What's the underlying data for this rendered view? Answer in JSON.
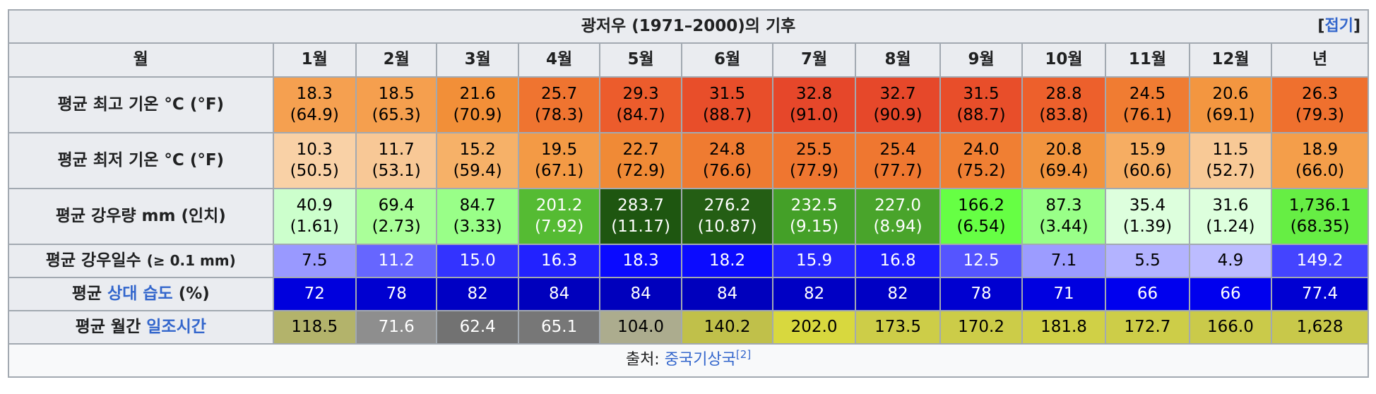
{
  "title": "광저우 (1971–2000)의 기후",
  "toggle": {
    "open": "[",
    "label": "접기",
    "close": "]"
  },
  "header": {
    "corner": "월",
    "months": [
      "1월",
      "2월",
      "3월",
      "4월",
      "5월",
      "6월",
      "7월",
      "8월",
      "9월",
      "10월",
      "11월",
      "12월"
    ],
    "year": "년"
  },
  "rows": [
    {
      "label": "평균 최고 기온 °C (°F)",
      "cells": [
        {
          "top": "18.3",
          "bottom": "(64.9)",
          "bg": "#f5a050",
          "fg": "#000000"
        },
        {
          "top": "18.5",
          "bottom": "(65.3)",
          "bg": "#f59f4e",
          "fg": "#000000"
        },
        {
          "top": "21.6",
          "bottom": "(70.9)",
          "bg": "#f28f38",
          "fg": "#000000"
        },
        {
          "top": "25.7",
          "bottom": "(78.3)",
          "bg": "#ef7430",
          "fg": "#000000"
        },
        {
          "top": "29.3",
          "bottom": "(84.7)",
          "bg": "#ec5c2c",
          "fg": "#000000"
        },
        {
          "top": "31.5",
          "bottom": "(88.7)",
          "bg": "#e84e2a",
          "fg": "#000000"
        },
        {
          "top": "32.8",
          "bottom": "(91.0)",
          "bg": "#e6472a",
          "fg": "#000000"
        },
        {
          "top": "32.7",
          "bottom": "(90.9)",
          "bg": "#e6482a",
          "fg": "#000000"
        },
        {
          "top": "31.5",
          "bottom": "(88.7)",
          "bg": "#e84e2a",
          "fg": "#000000"
        },
        {
          "top": "28.8",
          "bottom": "(83.8)",
          "bg": "#ed602c",
          "fg": "#000000"
        },
        {
          "top": "24.5",
          "bottom": "(76.1)",
          "bg": "#f07c32",
          "fg": "#000000"
        },
        {
          "top": "20.6",
          "bottom": "(69.1)",
          "bg": "#f39640",
          "fg": "#000000"
        },
        {
          "top": "26.3",
          "bottom": "(79.3)",
          "bg": "#ef702e",
          "fg": "#000000"
        }
      ]
    },
    {
      "label": "평균 최저 기온 °C (°F)",
      "cells": [
        {
          "top": "10.3",
          "bottom": "(50.5)",
          "bg": "#f9d1a6",
          "fg": "#000000"
        },
        {
          "top": "11.7",
          "bottom": "(53.1)",
          "bg": "#f8c896",
          "fg": "#000000"
        },
        {
          "top": "15.2",
          "bottom": "(59.4)",
          "bg": "#f6b168",
          "fg": "#000000"
        },
        {
          "top": "19.5",
          "bottom": "(67.1)",
          "bg": "#f39a45",
          "fg": "#000000"
        },
        {
          "top": "22.7",
          "bottom": "(72.9)",
          "bg": "#f08a36",
          "fg": "#000000"
        },
        {
          "top": "24.8",
          "bottom": "(76.6)",
          "bg": "#ef7b31",
          "fg": "#000000"
        },
        {
          "top": "25.5",
          "bottom": "(77.9)",
          "bg": "#ef7630",
          "fg": "#000000"
        },
        {
          "top": "25.4",
          "bottom": "(77.7)",
          "bg": "#ef7730",
          "fg": "#000000"
        },
        {
          "top": "24.0",
          "bottom": "(75.2)",
          "bg": "#f07f33",
          "fg": "#000000"
        },
        {
          "top": "20.8",
          "bottom": "(69.4)",
          "bg": "#f2943e",
          "fg": "#000000"
        },
        {
          "top": "15.9",
          "bottom": "(60.6)",
          "bg": "#f6ad62",
          "fg": "#000000"
        },
        {
          "top": "11.5",
          "bottom": "(52.7)",
          "bg": "#f8c996",
          "fg": "#000000"
        },
        {
          "top": "18.9",
          "bottom": "(66.0)",
          "bg": "#f49e4a",
          "fg": "#000000"
        }
      ]
    },
    {
      "label": "평균 강우량 mm (인치)",
      "cells": [
        {
          "top": "40.9",
          "bottom": "(1.61)",
          "bg": "#ccffcc",
          "fg": "#000000"
        },
        {
          "top": "69.4",
          "bottom": "(2.73)",
          "bg": "#aaff99",
          "fg": "#000000"
        },
        {
          "top": "84.7",
          "bottom": "(3.33)",
          "bg": "#99ff88",
          "fg": "#000000"
        },
        {
          "top": "201.2",
          "bottom": "(7.92)",
          "bg": "#55bb33",
          "fg": "#ffffff"
        },
        {
          "top": "283.7",
          "bottom": "(11.17)",
          "bg": "#1e5610",
          "fg": "#ffffff"
        },
        {
          "top": "276.2",
          "bottom": "(10.87)",
          "bg": "#245e14",
          "fg": "#ffffff"
        },
        {
          "top": "232.5",
          "bottom": "(9.15)",
          "bg": "#44a028",
          "fg": "#ffffff"
        },
        {
          "top": "227.0",
          "bottom": "(8.94)",
          "bg": "#49a42b",
          "fg": "#ffffff"
        },
        {
          "top": "166.2",
          "bottom": "(6.54)",
          "bg": "#66ff44",
          "fg": "#000000"
        },
        {
          "top": "87.3",
          "bottom": "(3.44)",
          "bg": "#99ff88",
          "fg": "#000000"
        },
        {
          "top": "35.4",
          "bottom": "(1.39)",
          "bg": "#ddffdd",
          "fg": "#000000"
        },
        {
          "top": "31.6",
          "bottom": "(1.24)",
          "bg": "#ddffdd",
          "fg": "#000000"
        },
        {
          "top": "1,736.1",
          "bottom": "(68.35)",
          "bg": "#66ee44",
          "fg": "#000000"
        }
      ]
    },
    {
      "label": "평균 강우일수",
      "label_small": "(≥ 0.1 mm)",
      "cells": [
        {
          "top": "7.5",
          "bg": "#9999ff",
          "fg": "#000000"
        },
        {
          "top": "11.2",
          "bg": "#6666ff",
          "fg": "#ffffff"
        },
        {
          "top": "15.0",
          "bg": "#3333ff",
          "fg": "#ffffff"
        },
        {
          "top": "16.3",
          "bg": "#2222ff",
          "fg": "#ffffff"
        },
        {
          "top": "18.3",
          "bg": "#0a0aff",
          "fg": "#ffffff"
        },
        {
          "top": "18.2",
          "bg": "#0b0bff",
          "fg": "#ffffff"
        },
        {
          "top": "15.9",
          "bg": "#2727ff",
          "fg": "#ffffff"
        },
        {
          "top": "16.8",
          "bg": "#1e1eff",
          "fg": "#ffffff"
        },
        {
          "top": "12.5",
          "bg": "#5555ff",
          "fg": "#ffffff"
        },
        {
          "top": "7.1",
          "bg": "#9c9cff",
          "fg": "#000000"
        },
        {
          "top": "5.5",
          "bg": "#b3b3ff",
          "fg": "#000000"
        },
        {
          "top": "4.9",
          "bg": "#bcbcff",
          "fg": "#000000"
        },
        {
          "top": "149.2",
          "bg": "#4444ff",
          "fg": "#ffffff"
        }
      ]
    },
    {
      "label_prefix": "평균 ",
      "label_link": "상대 습도",
      "label_suffix": " (%)",
      "cells": [
        {
          "top": "72",
          "bg": "#0000dd",
          "fg": "#ffffff"
        },
        {
          "top": "78",
          "bg": "#0000d0",
          "fg": "#ffffff"
        },
        {
          "top": "82",
          "bg": "#0000c4",
          "fg": "#ffffff"
        },
        {
          "top": "84",
          "bg": "#0000bd",
          "fg": "#ffffff"
        },
        {
          "top": "84",
          "bg": "#0000bd",
          "fg": "#ffffff"
        },
        {
          "top": "84",
          "bg": "#0000bd",
          "fg": "#ffffff"
        },
        {
          "top": "82",
          "bg": "#0000c4",
          "fg": "#ffffff"
        },
        {
          "top": "82",
          "bg": "#0000c4",
          "fg": "#ffffff"
        },
        {
          "top": "78",
          "bg": "#0000d0",
          "fg": "#ffffff"
        },
        {
          "top": "71",
          "bg": "#0000e0",
          "fg": "#ffffff"
        },
        {
          "top": "66",
          "bg": "#0000ee",
          "fg": "#ffffff"
        },
        {
          "top": "66",
          "bg": "#0000ee",
          "fg": "#ffffff"
        },
        {
          "top": "77.4",
          "bg": "#0000d2",
          "fg": "#ffffff"
        }
      ]
    },
    {
      "label_prefix": "평균 월간 ",
      "label_link": "일조시간",
      "label_suffix": "",
      "cells": [
        {
          "top": "118.5",
          "bg": "#b3b36b",
          "fg": "#000000"
        },
        {
          "top": "71.6",
          "bg": "#8e8e8e",
          "fg": "#ffffff"
        },
        {
          "top": "62.4",
          "bg": "#727272",
          "fg": "#ffffff"
        },
        {
          "top": "65.1",
          "bg": "#777777",
          "fg": "#ffffff"
        },
        {
          "top": "104.0",
          "bg": "#acac8e",
          "fg": "#000000"
        },
        {
          "top": "140.2",
          "bg": "#c0c04a",
          "fg": "#000000"
        },
        {
          "top": "202.0",
          "bg": "#d8d83e",
          "fg": "#000000"
        },
        {
          "top": "173.5",
          "bg": "#cdcd48",
          "fg": "#000000"
        },
        {
          "top": "170.2",
          "bg": "#cccc48",
          "fg": "#000000"
        },
        {
          "top": "181.8",
          "bg": "#d0d046",
          "fg": "#000000"
        },
        {
          "top": "172.7",
          "bg": "#cdcd48",
          "fg": "#000000"
        },
        {
          "top": "166.0",
          "bg": "#caca4a",
          "fg": "#000000"
        },
        {
          "top": "1,628",
          "bg": "#c8c84a",
          "fg": "#000000"
        }
      ]
    }
  ],
  "source": {
    "prefix": "출처: ",
    "link": "중국기상국",
    "ref": "[2]"
  }
}
